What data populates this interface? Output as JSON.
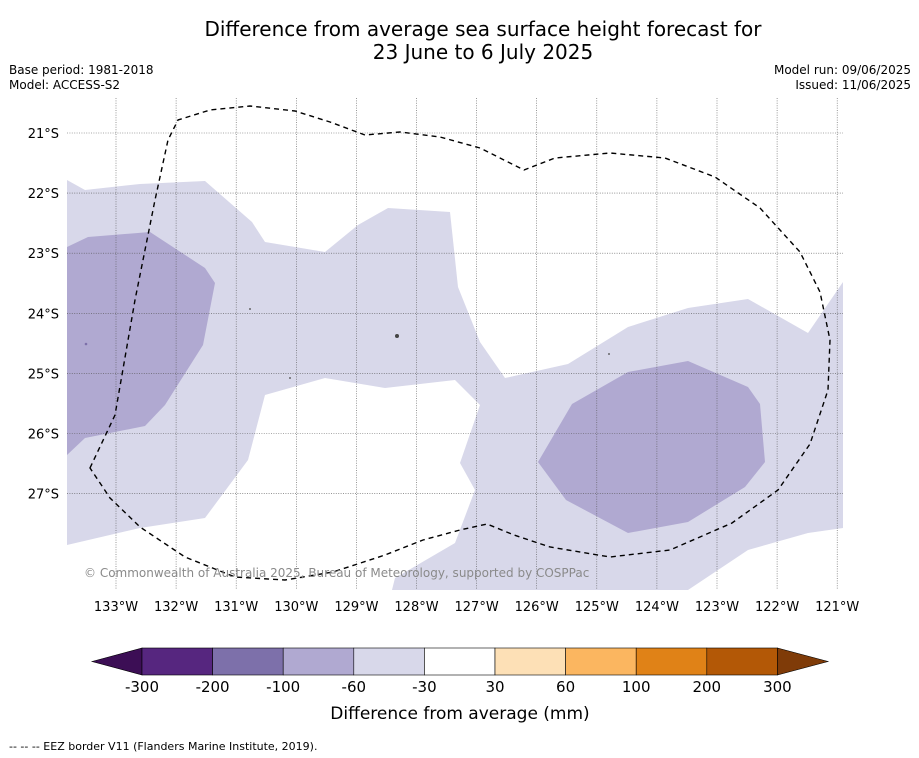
{
  "title_line1": "Difference from average sea surface height forecast for",
  "title_line2": "23 June to 6 July 2025",
  "meta_left": {
    "base_period": "Base period: 1981-2018",
    "model": "Model: ACCESS-S2"
  },
  "meta_right": {
    "model_run": "Model run: 09/06/2025",
    "issued": "Issued: 11/06/2025"
  },
  "map": {
    "lon_range": [
      -133.85,
      -120.9
    ],
    "lat_range": [
      -28.6,
      -20.4
    ],
    "lat_ticks": [
      "21°S",
      "22°S",
      "23°S",
      "24°S",
      "25°S",
      "26°S",
      "27°S"
    ],
    "lat_values": [
      -21,
      -22,
      -23,
      -24,
      -25,
      -26,
      -27
    ],
    "lon_ticks": [
      "133°W",
      "132°W",
      "131°W",
      "130°W",
      "129°W",
      "128°W",
      "127°W",
      "126°W",
      "125°W",
      "124°W",
      "123°W",
      "122°W",
      "121°W"
    ],
    "lon_values": [
      -133,
      -132,
      -131,
      -130,
      -129,
      -128,
      -127,
      -126,
      -125,
      -124,
      -123,
      -122,
      -121
    ],
    "copyright": "© Commonwealth of Australia 2025, Bureau of Meteorology, supported by COSPPac",
    "colors": {
      "light": "#d8d8ea",
      "mid": "#b0a9d1"
    }
  },
  "colorbar": {
    "colors": [
      "#3c0e55",
      "#56267f",
      "#7d70aa",
      "#b0a9d1",
      "#d8d8ea",
      "#ffffff",
      "#fde0b6",
      "#fbb660",
      "#e08217",
      "#b35806",
      "#7f3b08"
    ],
    "labels": [
      "-300",
      "-200",
      "-100",
      "-60",
      "-30",
      "30",
      "60",
      "100",
      "200",
      "300"
    ],
    "label": "Difference from average (mm)"
  },
  "footnote": "-- -- -- EEZ border V11 (Flanders Marine Institute, 2019)."
}
